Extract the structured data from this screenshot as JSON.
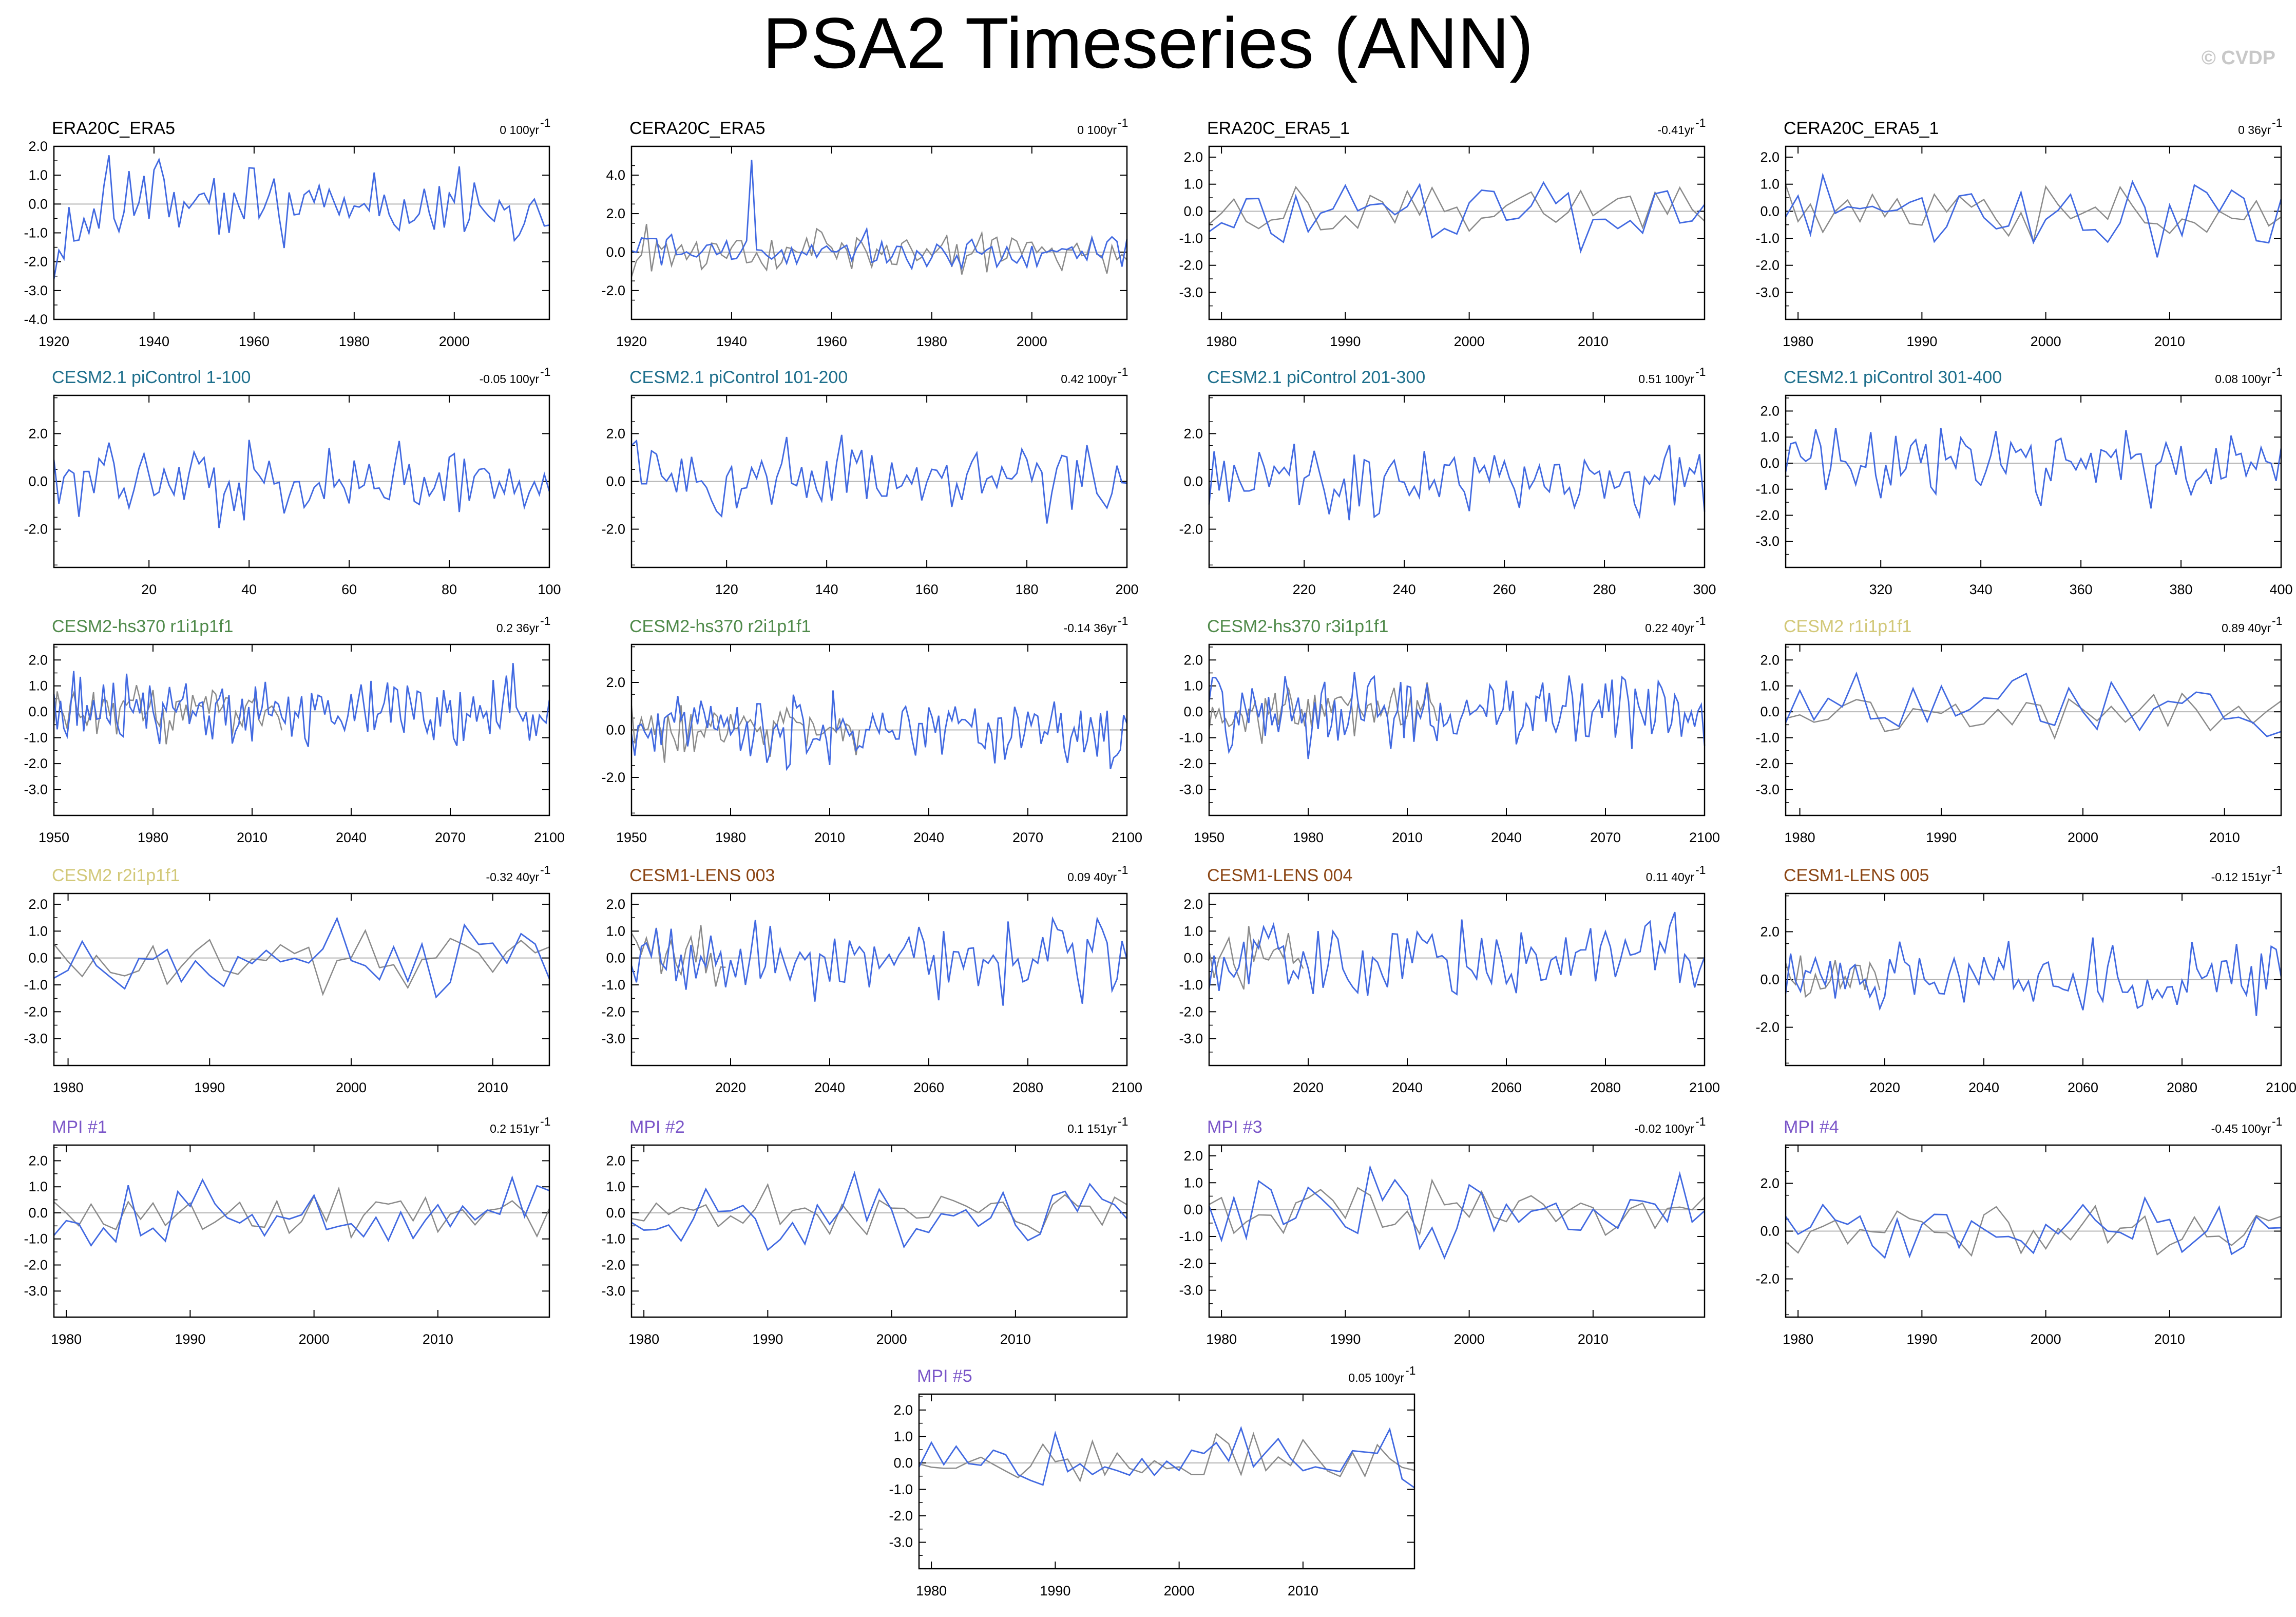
{
  "title": "PSA2 Timeseries (ANN)",
  "watermark": "© CVDP",
  "colors": {
    "series": "#4169e1",
    "reference": "#8a8a8a",
    "zero": "#b4b4b4",
    "frame": "#000000"
  },
  "chart_data": [
    {
      "type": "line",
      "title": "ERA20C_ERA5",
      "title_color": "#000000",
      "trend": "0 100yr",
      "x_range": [
        1920,
        2019
      ],
      "xticks": [
        1920,
        1940,
        1960,
        1980,
        2000
      ],
      "ylim": [
        -4,
        2
      ],
      "yticks": [
        2,
        1,
        0,
        -1,
        -2,
        -3,
        -4
      ],
      "ytick_labels": [
        "2.0",
        "1.0",
        "0.0",
        "-1.0",
        "-2.0",
        "-3.0",
        "-4.0"
      ],
      "ref": false,
      "seed": 11,
      "amp": 1.0,
      "lowstart": true
    },
    {
      "type": "line",
      "title": "CERA20C_ERA5",
      "title_color": "#000000",
      "trend": "0 100yr",
      "x_range": [
        1920,
        2019
      ],
      "xticks": [
        1920,
        1940,
        1960,
        1980,
        2000
      ],
      "ylim": [
        -3.5,
        5.5
      ],
      "yticks": [
        4,
        2,
        0,
        -2
      ],
      "ytick_labels": [
        "4.0",
        "2.0",
        "0.0",
        "-2.0"
      ],
      "ref": true,
      "seed": 12,
      "amp": 0.7,
      "spike": [
        1944,
        4.8
      ]
    },
    {
      "type": "line",
      "title": "ERA20C_ERA5_1",
      "title_color": "#000000",
      "trend": "-0.41yr",
      "x_range": [
        1979,
        2019
      ],
      "xticks": [
        1980,
        1990,
        2000,
        2010
      ],
      "ylim": [
        -4,
        2.4
      ],
      "yticks": [
        2,
        1,
        0,
        -1,
        -2,
        -3
      ],
      "ytick_labels": [
        "2.0",
        "1.0",
        "0.0",
        "-1.0",
        "-2.0",
        "-3.0"
      ],
      "ref": true,
      "seed": 13,
      "amp": 1.0
    },
    {
      "type": "line",
      "title": "CERA20C_ERA5_1",
      "title_color": "#000000",
      "trend": "0 36yr",
      "x_range": [
        1979,
        2019
      ],
      "xticks": [
        1980,
        1990,
        2000,
        2010
      ],
      "ylim": [
        -4,
        2.4
      ],
      "yticks": [
        2,
        1,
        0,
        -1,
        -2,
        -3
      ],
      "ytick_labels": [
        "2.0",
        "1.0",
        "0.0",
        "-1.0",
        "-2.0",
        "-3.0"
      ],
      "ref": true,
      "seed": 14,
      "amp": 1.0
    },
    {
      "type": "line",
      "title": "CESM2.1 piControl 1-100",
      "title_color": "#1e6f8c",
      "trend": "-0.05 100yr",
      "x_range": [
        1,
        100
      ],
      "xticks": [
        20,
        40,
        60,
        80,
        100
      ],
      "ylim": [
        -3.6,
        3.6
      ],
      "yticks": [
        2,
        0,
        -2
      ],
      "ytick_labels": [
        "2.0",
        "0.0",
        "-2.0"
      ],
      "ref": false,
      "seed": 21,
      "amp": 1.1
    },
    {
      "type": "line",
      "title": "CESM2.1 piControl 101-200",
      "title_color": "#1e6f8c",
      "trend": "0.42 100yr",
      "x_range": [
        101,
        200
      ],
      "xticks": [
        120,
        140,
        160,
        180,
        200
      ],
      "ylim": [
        -3.6,
        3.6
      ],
      "yticks": [
        2,
        0,
        -2
      ],
      "ytick_labels": [
        "2.0",
        "0.0",
        "-2.0"
      ],
      "ref": false,
      "seed": 22,
      "amp": 1.1
    },
    {
      "type": "line",
      "title": "CESM2.1 piControl 201-300",
      "title_color": "#1e6f8c",
      "trend": "0.51 100yr",
      "x_range": [
        201,
        300
      ],
      "xticks": [
        220,
        240,
        260,
        280,
        300
      ],
      "ylim": [
        -3.6,
        3.6
      ],
      "yticks": [
        2,
        0,
        -2
      ],
      "ytick_labels": [
        "2.0",
        "0.0",
        "-2.0"
      ],
      "ref": false,
      "seed": 23,
      "amp": 1.1
    },
    {
      "type": "line",
      "title": "CESM2.1 piControl 301-400",
      "title_color": "#1e6f8c",
      "trend": "0.08 100yr",
      "x_range": [
        301,
        400
      ],
      "xticks": [
        320,
        340,
        360,
        380,
        400
      ],
      "ylim": [
        -4,
        2.6
      ],
      "yticks": [
        2,
        1,
        0,
        -1,
        -2,
        -3
      ],
      "ytick_labels": [
        "2.0",
        "1.0",
        "0.0",
        "-1.0",
        "-2.0",
        "-3.0"
      ],
      "ref": false,
      "seed": 24,
      "amp": 1.0
    },
    {
      "type": "line",
      "title": "CESM2-hs370 r1i1p1f1",
      "title_color": "#4f8a4a",
      "trend": "0.2 36yr",
      "x_range": [
        1950,
        2100
      ],
      "xticks": [
        1950,
        1980,
        2010,
        2040,
        2070,
        2100
      ],
      "ylim": [
        -4,
        2.6
      ],
      "yticks": [
        2,
        1,
        0,
        -1,
        -2,
        -3
      ],
      "ytick_labels": [
        "2.0",
        "1.0",
        "0.0",
        "-1.0",
        "-2.0",
        "-3.0"
      ],
      "ref": true,
      "refEnd": 2019,
      "seed": 31,
      "amp": 1.0
    },
    {
      "type": "line",
      "title": "CESM2-hs370 r2i1p1f1",
      "title_color": "#4f8a4a",
      "trend": "-0.14 36yr",
      "x_range": [
        1950,
        2100
      ],
      "xticks": [
        1950,
        1980,
        2010,
        2040,
        2070,
        2100
      ],
      "ylim": [
        -3.6,
        3.6
      ],
      "yticks": [
        2,
        0,
        -2
      ],
      "ytick_labels": [
        "2.0",
        "0.0",
        "-2.0"
      ],
      "ref": true,
      "refEnd": 2019,
      "seed": 32,
      "amp": 1.0
    },
    {
      "type": "line",
      "title": "CESM2-hs370 r3i1p1f1",
      "title_color": "#4f8a4a",
      "trend": "0.22 40yr",
      "x_range": [
        1950,
        2100
      ],
      "xticks": [
        1950,
        1980,
        2010,
        2040,
        2070,
        2100
      ],
      "ylim": [
        -4,
        2.6
      ],
      "yticks": [
        2,
        1,
        0,
        -1,
        -2,
        -3
      ],
      "ytick_labels": [
        "2.0",
        "1.0",
        "0.0",
        "-1.0",
        "-2.0",
        "-3.0"
      ],
      "ref": true,
      "refEnd": 2019,
      "seed": 33,
      "amp": 1.0
    },
    {
      "type": "line",
      "title": "CESM2 r1i1p1f1",
      "title_color": "#d2c878",
      "trend": "0.89 40yr",
      "x_range": [
        1979,
        2014
      ],
      "xticks": [
        1980,
        1990,
        2000,
        2010
      ],
      "ylim": [
        -4,
        2.6
      ],
      "yticks": [
        2,
        1,
        0,
        -1,
        -2,
        -3
      ],
      "ytick_labels": [
        "2.0",
        "1.0",
        "0.0",
        "-1.0",
        "-2.0",
        "-3.0"
      ],
      "ref": true,
      "seed": 34,
      "amp": 0.9
    },
    {
      "type": "line",
      "title": "CESM2 r2i1p1f1",
      "title_color": "#d2c878",
      "trend": "-0.32 40yr",
      "x_range": [
        1979,
        2014
      ],
      "xticks": [
        1980,
        1990,
        2000,
        2010
      ],
      "ylim": [
        -4,
        2.4
      ],
      "yticks": [
        2,
        1,
        0,
        -1,
        -2,
        -3
      ],
      "ytick_labels": [
        "2.0",
        "1.0",
        "0.0",
        "-1.0",
        "-2.0",
        "-3.0"
      ],
      "ref": true,
      "seed": 41,
      "amp": 0.9
    },
    {
      "type": "line",
      "title": "CESM1-LENS 003",
      "title_color": "#8b4513",
      "trend": "0.09 40yr",
      "x_range": [
        2000,
        2100
      ],
      "xticks": [
        2020,
        2040,
        2060,
        2080,
        2100
      ],
      "ylim": [
        -4,
        2.4
      ],
      "yticks": [
        2,
        1,
        0,
        -1,
        -2,
        -3
      ],
      "ytick_labels": [
        "2.0",
        "1.0",
        "0.0",
        "-1.0",
        "-2.0",
        "-3.0"
      ],
      "ref": true,
      "refEnd": 2019,
      "seed": 42,
      "amp": 1.0
    },
    {
      "type": "line",
      "title": "CESM1-LENS 004",
      "title_color": "#8b4513",
      "trend": "0.11 40yr",
      "x_range": [
        2000,
        2100
      ],
      "xticks": [
        2020,
        2040,
        2060,
        2080,
        2100
      ],
      "ylim": [
        -4,
        2.4
      ],
      "yticks": [
        2,
        1,
        0,
        -1,
        -2,
        -3
      ],
      "ytick_labels": [
        "2.0",
        "1.0",
        "0.0",
        "-1.0",
        "-2.0",
        "-3.0"
      ],
      "ref": true,
      "refEnd": 2019,
      "seed": 43,
      "amp": 1.0
    },
    {
      "type": "line",
      "title": "CESM1-LENS 005",
      "title_color": "#8b4513",
      "trend": "-0.12 151yr",
      "x_range": [
        2000,
        2100
      ],
      "xticks": [
        2020,
        2040,
        2060,
        2080,
        2100
      ],
      "ylim": [
        -3.6,
        3.6
      ],
      "yticks": [
        2,
        0,
        -2
      ],
      "ytick_labels": [
        "2.0",
        "0.0",
        "-2.0"
      ],
      "ref": true,
      "refEnd": 2019,
      "seed": 44,
      "amp": 1.0
    },
    {
      "type": "line",
      "title": "MPI #1",
      "title_color": "#7a55c8",
      "trend": "0.2 151yr",
      "x_range": [
        1979,
        2019
      ],
      "xticks": [
        1980,
        1990,
        2000,
        2010
      ],
      "ylim": [
        -4,
        2.6
      ],
      "yticks": [
        2,
        1,
        0,
        -1,
        -2,
        -3
      ],
      "ytick_labels": [
        "2.0",
        "1.0",
        "0.0",
        "-1.0",
        "-2.0",
        "-3.0"
      ],
      "ref": true,
      "seed": 51,
      "amp": 0.9
    },
    {
      "type": "line",
      "title": "MPI #2",
      "title_color": "#7a55c8",
      "trend": "0.1 151yr",
      "x_range": [
        1979,
        2019
      ],
      "xticks": [
        1980,
        1990,
        2000,
        2010
      ],
      "ylim": [
        -4,
        2.6
      ],
      "yticks": [
        2,
        1,
        0,
        -1,
        -2,
        -3
      ],
      "ytick_labels": [
        "2.0",
        "1.0",
        "0.0",
        "-1.0",
        "-2.0",
        "-3.0"
      ],
      "ref": true,
      "seed": 52,
      "amp": 0.9
    },
    {
      "type": "line",
      "title": "MPI #3",
      "title_color": "#7a55c8",
      "trend": "-0.02 100yr",
      "x_range": [
        1979,
        2019
      ],
      "xticks": [
        1980,
        1990,
        2000,
        2010
      ],
      "ylim": [
        -4,
        2.4
      ],
      "yticks": [
        2,
        1,
        0,
        -1,
        -2,
        -3
      ],
      "ytick_labels": [
        "2.0",
        "1.0",
        "0.0",
        "-1.0",
        "-2.0",
        "-3.0"
      ],
      "ref": true,
      "seed": 53,
      "amp": 1.0
    },
    {
      "type": "line",
      "title": "MPI #4",
      "title_color": "#7a55c8",
      "trend": "-0.45 100yr",
      "x_range": [
        1979,
        2019
      ],
      "xticks": [
        1980,
        1990,
        2000,
        2010
      ],
      "ylim": [
        -3.6,
        3.6
      ],
      "yticks": [
        2,
        0,
        -2
      ],
      "ytick_labels": [
        "2.0",
        "0.0",
        "-2.0"
      ],
      "ref": true,
      "seed": 54,
      "amp": 0.9
    },
    {
      "type": "line",
      "title": "MPI #5",
      "title_color": "#7a55c8",
      "trend": "0.05 100yr",
      "x_range": [
        1979,
        2019
      ],
      "xticks": [
        1980,
        1990,
        2000,
        2010
      ],
      "ylim": [
        -4,
        2.6
      ],
      "yticks": [
        2,
        1,
        0,
        -1,
        -2,
        -3
      ],
      "ytick_labels": [
        "2.0",
        "1.0",
        "0.0",
        "-1.0",
        "-2.0",
        "-3.0"
      ],
      "ref": true,
      "seed": 55,
      "amp": 0.9
    }
  ]
}
